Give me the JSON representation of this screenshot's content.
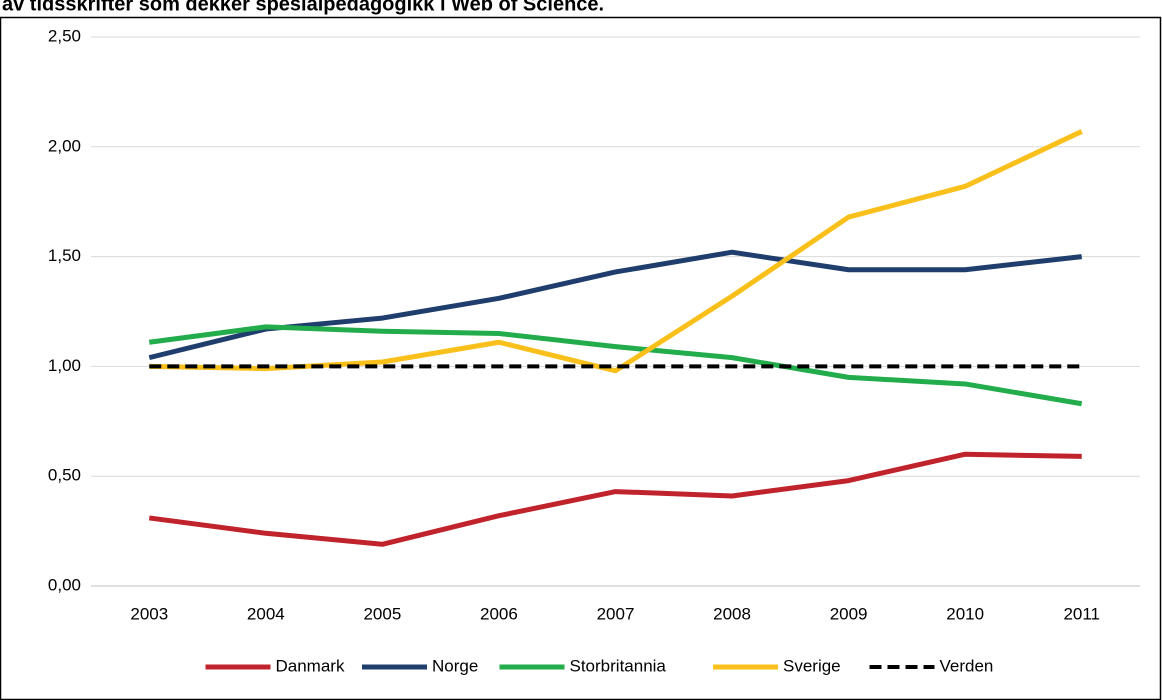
{
  "chart_data": {
    "type": "line",
    "title": "av tidsskrifter som dekker spesialpedagogikk i Web of Science.",
    "categories": [
      "2003",
      "2004",
      "2005",
      "2006",
      "2007",
      "2008",
      "2009",
      "2010",
      "2011"
    ],
    "series": [
      {
        "name": "Danmark",
        "color": "#c0232b",
        "values": [
          0.31,
          0.24,
          0.19,
          0.32,
          0.43,
          0.41,
          0.48,
          0.6,
          0.59
        ]
      },
      {
        "name": "Norge",
        "color": "#1f3e6e",
        "values": [
          1.04,
          1.17,
          1.22,
          1.31,
          1.43,
          1.52,
          1.44,
          1.44,
          1.5
        ]
      },
      {
        "name": "Storbritannia",
        "color": "#22ac4b",
        "values": [
          1.11,
          1.18,
          1.16,
          1.15,
          1.09,
          1.04,
          0.95,
          0.92,
          0.83
        ]
      },
      {
        "name": "Sverige",
        "color": "#f9c01b",
        "values": [
          1.0,
          0.99,
          1.02,
          1.11,
          0.98,
          1.32,
          1.68,
          1.82,
          2.07
        ]
      },
      {
        "name": "Verden",
        "color": "#000000",
        "style": "dashed",
        "values": [
          1.0,
          1.0,
          1.0,
          1.0,
          1.0,
          1.0,
          1.0,
          1.0,
          1.0
        ]
      }
    ],
    "ylim": [
      0,
      2.5
    ],
    "yticks": [
      {
        "value": 0,
        "label": "0,00"
      },
      {
        "value": 0.5,
        "label": "0,50"
      },
      {
        "value": 1,
        "label": "1,00"
      },
      {
        "value": 1.5,
        "label": "1,50"
      },
      {
        "value": 2,
        "label": "2,00"
      },
      {
        "value": 2.5,
        "label": "2,50"
      }
    ],
    "grid": true,
    "legend": "bottom"
  }
}
